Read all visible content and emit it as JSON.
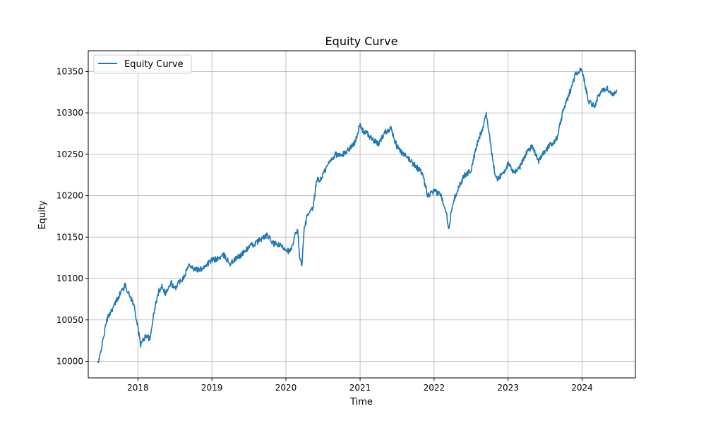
{
  "chart_data": {
    "type": "line",
    "title": "Equity Curve",
    "xlabel": "Time",
    "ylabel": "Equity",
    "grid": true,
    "legend_position": "top-left",
    "x_ticks": [
      "2018",
      "2019",
      "2020",
      "2021",
      "2022",
      "2023",
      "2024"
    ],
    "y_ticks": [
      10000,
      10050,
      10100,
      10150,
      10200,
      10250,
      10300,
      10350
    ],
    "xlim": [
      "2017-05-01",
      "2024-09-20"
    ],
    "ylim": [
      9980,
      10375
    ],
    "series": [
      {
        "name": "Equity Curve",
        "color": "#1f77b4",
        "x": [
          "2017-06-15",
          "2017-06-20",
          "2017-06-25",
          "2017-07-01",
          "2017-07-10",
          "2017-07-20",
          "2017-08-01",
          "2017-08-15",
          "2017-09-01",
          "2017-09-15",
          "2017-10-01",
          "2017-10-15",
          "2017-11-01",
          "2017-11-15",
          "2017-12-01",
          "2017-12-15",
          "2018-01-01",
          "2018-01-15",
          "2018-02-01",
          "2018-02-15",
          "2018-03-01",
          "2018-03-15",
          "2018-04-01",
          "2018-04-15",
          "2018-05-01",
          "2018-05-15",
          "2018-06-01",
          "2018-06-15",
          "2018-07-01",
          "2018-07-15",
          "2018-08-01",
          "2018-08-15",
          "2018-09-01",
          "2018-09-15",
          "2018-10-01",
          "2018-11-01",
          "2018-12-01",
          "2019-01-01",
          "2019-02-01",
          "2019-03-01",
          "2019-04-01",
          "2019-05-01",
          "2019-06-01",
          "2019-07-01",
          "2019-08-01",
          "2019-09-01",
          "2019-10-01",
          "2019-11-01",
          "2019-12-01",
          "2020-01-01",
          "2020-01-20",
          "2020-02-05",
          "2020-02-20",
          "2020-03-01",
          "2020-03-10",
          "2020-03-20",
          "2020-04-01",
          "2020-04-15",
          "2020-05-01",
          "2020-05-15",
          "2020-06-01",
          "2020-06-15",
          "2020-07-01",
          "2020-08-01",
          "2020-09-01",
          "2020-10-01",
          "2020-11-01",
          "2020-12-01",
          "2021-01-01",
          "2021-01-15",
          "2021-02-01",
          "2021-03-01",
          "2021-04-01",
          "2021-05-01",
          "2021-06-01",
          "2021-07-01",
          "2021-08-01",
          "2021-09-01",
          "2021-10-01",
          "2021-11-01",
          "2021-12-01",
          "2022-01-01",
          "2022-02-01",
          "2022-03-01",
          "2022-03-15",
          "2022-04-01",
          "2022-05-01",
          "2022-06-01",
          "2022-07-01",
          "2022-08-01",
          "2022-09-01",
          "2022-09-15",
          "2022-10-01",
          "2022-11-01",
          "2022-12-01",
          "2023-01-01",
          "2023-02-01",
          "2023-03-01",
          "2023-04-01",
          "2023-05-01",
          "2023-06-01",
          "2023-07-01",
          "2023-08-01",
          "2023-09-01",
          "2023-10-01",
          "2023-10-15",
          "2023-11-01",
          "2023-12-01",
          "2024-01-01",
          "2024-02-01",
          "2024-03-01",
          "2024-04-01",
          "2024-05-01",
          "2024-06-01",
          "2024-06-20"
        ],
        "values": [
          10000,
          9998,
          10002,
          10012,
          10022,
          10035,
          10050,
          10058,
          10065,
          10072,
          10080,
          10086,
          10092,
          10082,
          10075,
          10065,
          10040,
          10020,
          10028,
          10032,
          10025,
          10050,
          10072,
          10085,
          10092,
          10082,
          10088,
          10095,
          10086,
          10094,
          10098,
          10102,
          10112,
          10118,
          10112,
          10110,
          10116,
          10122,
          10124,
          10128,
          10118,
          10124,
          10130,
          10138,
          10142,
          10148,
          10152,
          10142,
          10140,
          10136,
          10132,
          10140,
          10158,
          10155,
          10122,
          10118,
          10160,
          10175,
          10180,
          10186,
          10220,
          10218,
          10225,
          10240,
          10250,
          10248,
          10255,
          10262,
          10285,
          10278,
          10276,
          10268,
          10262,
          10276,
          10282,
          10260,
          10250,
          10244,
          10236,
          10228,
          10200,
          10205,
          10202,
          10182,
          10160,
          10190,
          10210,
          10225,
          10230,
          10262,
          10285,
          10300,
          10272,
          10220,
          10225,
          10238,
          10228,
          10235,
          10252,
          10260,
          10242,
          10254,
          10262,
          10270,
          10305,
          10312,
          10325,
          10348,
          10352,
          10315,
          10308,
          10325,
          10330,
          10322,
          10328
        ]
      }
    ]
  }
}
